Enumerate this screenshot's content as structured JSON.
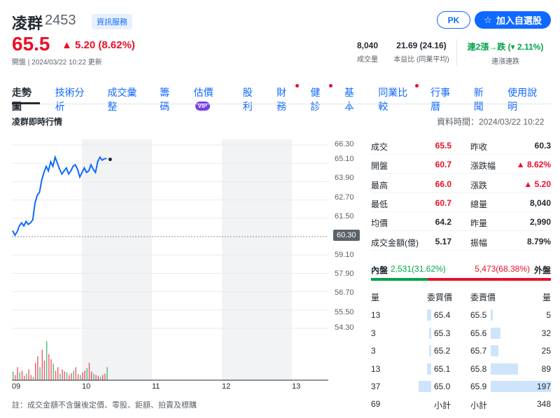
{
  "header": {
    "name": "凌群",
    "code": "2453",
    "tag": "資訊服務",
    "pk_label": "PK",
    "add_label": "加入自選股",
    "price": "65.5",
    "change": "5.20 (8.62%)",
    "meta": "開盤 | 2024/03/22 10:22 更新",
    "stats": [
      {
        "value": "8,040",
        "label": "成交量"
      },
      {
        "value": "21.69 (24.16)",
        "label": "本益比 (同業平均)"
      },
      {
        "value": "連2漲→跌 (▾ 2.11%)",
        "label": "連漲連跌"
      }
    ]
  },
  "tabs": [
    "走勢圖",
    "技術分析",
    "成交彙整",
    "籌碼",
    "估價",
    "股利",
    "財務",
    "健診",
    "基本",
    "同業比較",
    "行事曆",
    "新聞",
    "使用說明"
  ],
  "vip_label": "VIP",
  "section": {
    "title": "凌群即時行情",
    "datatime": "資料時間：2024/03/22 10:22"
  },
  "chart_data": {
    "type": "line",
    "yticks": [
      "66.30",
      "65.10",
      "63.90",
      "62.70",
      "61.50",
      "60.30",
      "59.10",
      "57.90",
      "56.70",
      "55.50",
      "54.30"
    ],
    "xticks": [
      "09",
      "10",
      "11",
      "12",
      "13"
    ],
    "ylim": [
      54.3,
      66.3
    ],
    "reference": "60.30",
    "x": [
      0,
      2,
      4,
      6,
      8,
      10,
      12,
      14,
      16,
      18,
      20,
      22,
      24,
      26,
      28,
      30,
      32,
      34,
      36,
      38,
      40,
      42,
      44,
      46,
      48,
      50,
      52,
      54,
      56,
      58,
      60,
      62,
      64,
      66,
      68,
      70,
      72,
      74,
      76,
      78,
      80,
      82,
      84
    ],
    "values": [
      60.7,
      60.4,
      60.6,
      61.0,
      61.2,
      61.0,
      61.3,
      61.1,
      61.2,
      61.4,
      62.5,
      63.0,
      63.2,
      64.0,
      64.5,
      64.9,
      64.6,
      65.2,
      64.9,
      65.5,
      65.1,
      64.7,
      64.4,
      64.6,
      64.8,
      64.4,
      64.6,
      64.9,
      65.0,
      64.7,
      64.2,
      64.5,
      64.8,
      64.5,
      64.6,
      65.0,
      64.7,
      64.5,
      65.2,
      65.5,
      65.3,
      65.4,
      65.4
    ],
    "volume": [
      20,
      12,
      30,
      18,
      22,
      10,
      15,
      25,
      12,
      8,
      40,
      55,
      30,
      70,
      45,
      90,
      60,
      48,
      38,
      22,
      30,
      15,
      25,
      20,
      18,
      12,
      16,
      22,
      30,
      14,
      12,
      18,
      22,
      28,
      40,
      20,
      15,
      12,
      10,
      8,
      12,
      15,
      30
    ]
  },
  "quote": [
    {
      "k": "成交",
      "v": "65.5",
      "vc": "red",
      "k2": "昨收",
      "v2": "60.3",
      "v2c": "blk"
    },
    {
      "k": "開盤",
      "v": "60.7",
      "vc": "red",
      "k2": "漲跌幅",
      "v2": "▲ 8.62%",
      "v2c": "red"
    },
    {
      "k": "最高",
      "v": "66.0",
      "vc": "red",
      "k2": "漲跌",
      "v2": "▲ 5.20",
      "v2c": "red"
    },
    {
      "k": "最低",
      "v": "60.7",
      "vc": "red",
      "k2": "總量",
      "v2": "8,040",
      "v2c": "blk"
    },
    {
      "k": "均價",
      "v": "64.2",
      "vc": "blk",
      "k2": "昨量",
      "v2": "2,990",
      "v2c": "blk"
    },
    {
      "k": "成交金額(億)",
      "v": "5.17",
      "vc": "blk",
      "k2": "振幅",
      "v2": "8.79%",
      "v2c": "blk"
    }
  ],
  "pan": {
    "inner_label": "內盤",
    "inner_value": "2,531(31.62%)",
    "outer_value": "5,473(68.38%)",
    "outer_label": "外盤",
    "inner_fraction": 0.3162
  },
  "orderbook": {
    "headers": [
      "量",
      "委買價",
      "委賣價",
      "量"
    ],
    "rows": [
      {
        "bq": "13",
        "bp": "65.4",
        "sp": "65.5",
        "sq": "5"
      },
      {
        "bq": "3",
        "bp": "65.3",
        "sp": "65.6",
        "sq": "32"
      },
      {
        "bq": "3",
        "bp": "65.2",
        "sp": "65.7",
        "sq": "25"
      },
      {
        "bq": "13",
        "bp": "65.1",
        "sp": "65.8",
        "sq": "89"
      },
      {
        "bq": "37",
        "bp": "65.0",
        "sp": "65.9",
        "sq": "197"
      }
    ],
    "total_buy": "69",
    "subtotal_label": "小計",
    "total_sell": "348"
  },
  "note": "註：成交金額不含盤後定價、零股、鉅額、拍賣及標購"
}
